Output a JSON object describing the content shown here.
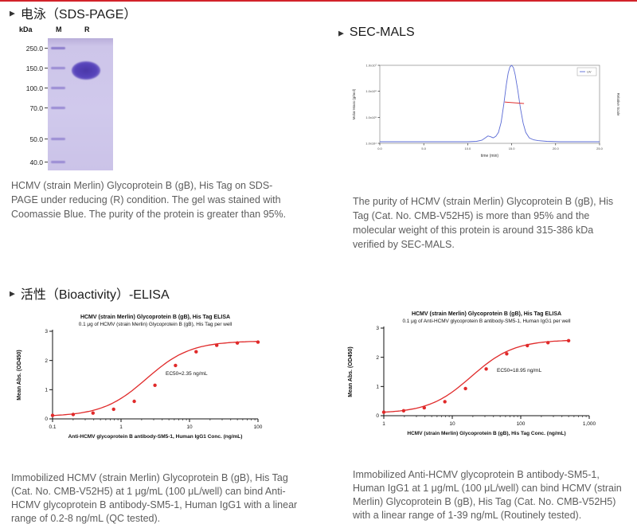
{
  "colors": {
    "accent": "#d2232a",
    "gel-band": "#9a8cd4",
    "gel-band-dark": "#5744bb",
    "curve-red": "#e02a2a",
    "sec-blue": "#5b6bd5",
    "text-gray": "#5d5d5d"
  },
  "sds_page": {
    "title": "电泳（SDS-PAGE）",
    "gel": {
      "unit_label": "kDa",
      "lanes": [
        "M",
        "R"
      ],
      "markers": [
        "250.0",
        "150.0",
        "100.0",
        "70.0",
        "50.0",
        "40.0"
      ]
    },
    "description": "HCMV (strain Merlin) Glycoprotein B (gB), His Tag on SDS-PAGE under reducing (R) condition. The gel was stained with Coomassie Blue. The purity of the protein is greater than 95%."
  },
  "sec_mals": {
    "title": "SEC-MALS",
    "description": "The purity of HCMV (strain Merlin) Glycoprotein B (gB), His Tag (Cat. No. CMB-V52H5) is more than 95% and the molecular weight of this protein is around 315-386 kDa verified by SEC-MALS."
  },
  "bioactivity": {
    "title": "活性（Bioactivity）-ELISA",
    "left_description": "Immobilized HCMV (strain Merlin) Glycoprotein B (gB), His Tag (Cat. No. CMB-V52H5) at 1 μg/mL (100 μL/well) can bind Anti-HCMV glycoprotein B antibody-SM5-1, Human IgG1 with a linear range of 0.2-8 ng/mL (QC tested).",
    "right_description": "Immobilized Anti-HCMV glycoprotein B antibody-SM5-1, Human IgG1 at 1 μg/mL (100 μL/well) can bind HCMV (strain Merlin) Glycoprotein B (gB), His Tag (Cat. No. CMB-V52H5) with a linear range of 1-39 ng/mL (Routinely tested)."
  },
  "chart_data": [
    {
      "name": "elisa_left",
      "type": "scatter",
      "title": "HCMV (strain Merlin) Glycoprotein B (gB), His Tag ELISA",
      "subtitle": "0.1 μg of HCMV (strain Merlin) Glycoprotein B (gB), His Tag per well",
      "xlabel": "Anti-HCMV glycoprotein B antibody-SM5-1, Human IgG1 Conc. (ng/mL)",
      "ylabel": "Mean Abs. (OD450)",
      "ec50_label": "EC50=2.35 ng/mL",
      "xticks": [
        "0.1",
        "1",
        "10",
        "100"
      ],
      "log_range": [
        -1,
        2
      ],
      "yticks": [
        "0",
        "1",
        "2",
        "3"
      ],
      "y_range": [
        0,
        3
      ],
      "points": [
        [
          0.1,
          0.12
        ],
        [
          0.2,
          0.15
        ],
        [
          0.39,
          0.2
        ],
        [
          0.78,
          0.33
        ],
        [
          1.56,
          0.6
        ],
        [
          3.13,
          1.15
        ],
        [
          6.25,
          1.83
        ],
        [
          12.5,
          2.3
        ],
        [
          25,
          2.52
        ],
        [
          50,
          2.6
        ],
        [
          100,
          2.63
        ]
      ],
      "fit": {
        "bottom": 0.08,
        "top": 2.67,
        "ec50": 2.35,
        "hill": 1.35
      },
      "curve_x_range": [
        0.1,
        100
      ]
    },
    {
      "name": "elisa_right",
      "type": "scatter",
      "title": "HCMV (strain Merlin) Glycoprotein B (gB), His Tag ELISA",
      "subtitle": "0.1 μg of Anti-HCMV glycoprotein B antibody-SM5-1, Human IgG1 per well",
      "xlabel": "HCMV (strain Merlin) Glycoprotein B (gB), His Tag Conc. (ng/mL)",
      "ylabel": "Mean Abs. (OD450)",
      "ec50_label": "EC50=18.95 ng/mL",
      "xticks": [
        "1",
        "10",
        "100",
        "1,000"
      ],
      "log_range": [
        0,
        3
      ],
      "yticks": [
        "0",
        "1",
        "2",
        "3"
      ],
      "y_range": [
        0,
        3
      ],
      "points": [
        [
          1,
          0.12
        ],
        [
          1.95,
          0.17
        ],
        [
          3.9,
          0.27
        ],
        [
          7.8,
          0.48
        ],
        [
          15.6,
          0.93
        ],
        [
          31.25,
          1.6
        ],
        [
          62.5,
          2.12
        ],
        [
          125,
          2.4
        ],
        [
          250,
          2.5
        ],
        [
          500,
          2.57
        ]
      ],
      "fit": {
        "bottom": 0.08,
        "top": 2.6,
        "ec50": 18.95,
        "hill": 1.4
      },
      "curve_x_range": [
        1,
        500
      ]
    },
    {
      "name": "sec_mals",
      "type": "line",
      "xlabel": "time (min)",
      "ylabel_left": "Molar Mass (g/mol)",
      "ylabel_right": "Relative Scale",
      "legend": "UV",
      "x_range": [
        0,
        25
      ],
      "xticks": [
        "0.0",
        "5.0",
        "10.0",
        "15.0",
        "20.0",
        "25.0"
      ],
      "yticks_left": [
        "1.0x10⁷",
        "1.0x10⁶",
        "1.0x10⁵",
        "1.0x10⁴"
      ],
      "uv_trace": [
        [
          0,
          0.02
        ],
        [
          6,
          0.02
        ],
        [
          10,
          0.02
        ],
        [
          11,
          0.025
        ],
        [
          11.6,
          0.04
        ],
        [
          12.0,
          0.07
        ],
        [
          12.3,
          0.095
        ],
        [
          12.6,
          0.085
        ],
        [
          12.9,
          0.07
        ],
        [
          13.2,
          0.09
        ],
        [
          13.5,
          0.14
        ],
        [
          13.8,
          0.27
        ],
        [
          14.1,
          0.5
        ],
        [
          14.4,
          0.76
        ],
        [
          14.6,
          0.9
        ],
        [
          14.8,
          0.98
        ],
        [
          15.0,
          1.0
        ],
        [
          15.2,
          0.97
        ],
        [
          15.4,
          0.88
        ],
        [
          15.7,
          0.68
        ],
        [
          16.0,
          0.45
        ],
        [
          16.3,
          0.26
        ],
        [
          16.6,
          0.14
        ],
        [
          17.0,
          0.07
        ],
        [
          17.5,
          0.045
        ],
        [
          18.0,
          0.035
        ],
        [
          19.0,
          0.025
        ],
        [
          20.5,
          0.02
        ],
        [
          22,
          0.02
        ],
        [
          25,
          0.02
        ]
      ],
      "mass_trace": [
        [
          14.2,
          0.53
        ],
        [
          16.4,
          0.51
        ]
      ]
    }
  ]
}
